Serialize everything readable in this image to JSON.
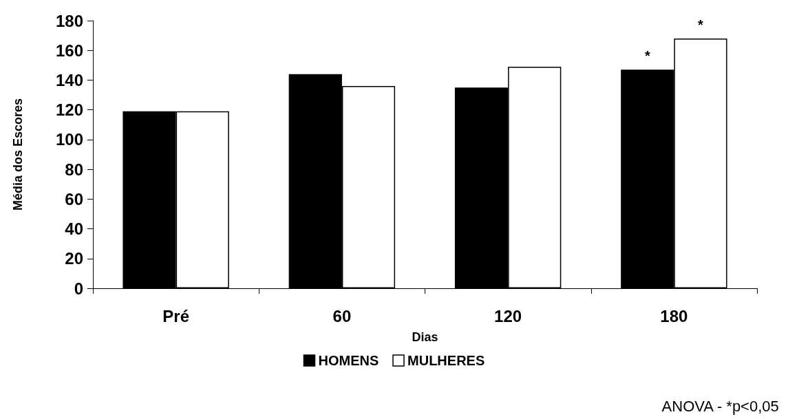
{
  "chart_data": {
    "type": "bar",
    "categories": [
      "Pré",
      "60",
      "120",
      "180"
    ],
    "xlabel": "Dias",
    "ylabel": "Média dos Escores",
    "series": [
      {
        "name": "HOMENS",
        "color": "#000000",
        "values": [
          119,
          144,
          135,
          147
        ]
      },
      {
        "name": "MULHERES",
        "color": "#ffffff",
        "values": [
          119,
          136,
          149,
          168
        ]
      }
    ],
    "ylim": [
      0,
      180
    ],
    "yticks": [
      0,
      20,
      40,
      60,
      80,
      100,
      120,
      140,
      160,
      180
    ],
    "grid": false,
    "legend": "bottom",
    "annotations": [
      {
        "text": "*",
        "x": "180",
        "y": 147
      },
      {
        "text": "*",
        "x": "180",
        "y": 168
      },
      "ANOVA - *p<0,05"
    ]
  }
}
